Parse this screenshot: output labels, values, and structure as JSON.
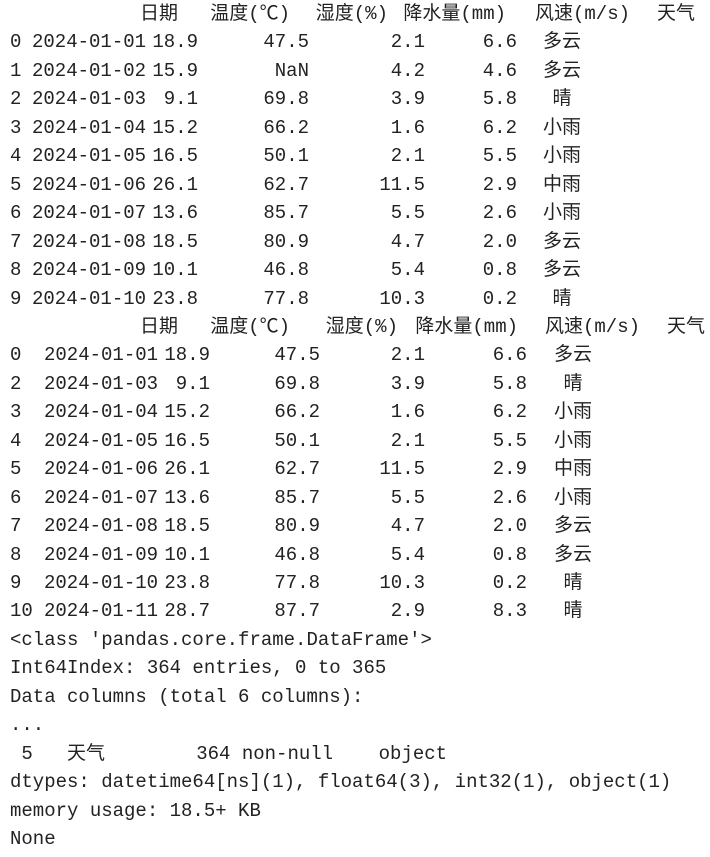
{
  "table1": {
    "header": [
      "日期",
      "温度(℃)",
      "湿度(%)",
      "降水量(mm)",
      "风速(m/s)",
      "天气"
    ],
    "rows": [
      [
        "0",
        "2024-01-01",
        "18.9",
        "47.5",
        "2.1",
        "6.6",
        "多云"
      ],
      [
        "1",
        "2024-01-02",
        "15.9",
        "NaN",
        "4.2",
        "4.6",
        "多云"
      ],
      [
        "2",
        "2024-01-03",
        "9.1",
        "69.8",
        "3.9",
        "5.8",
        "晴"
      ],
      [
        "3",
        "2024-01-04",
        "15.2",
        "66.2",
        "1.6",
        "6.2",
        "小雨"
      ],
      [
        "4",
        "2024-01-05",
        "16.5",
        "50.1",
        "2.1",
        "5.5",
        "小雨"
      ],
      [
        "5",
        "2024-01-06",
        "26.1",
        "62.7",
        "11.5",
        "2.9",
        "中雨"
      ],
      [
        "6",
        "2024-01-07",
        "13.6",
        "85.7",
        "5.5",
        "2.6",
        "小雨"
      ],
      [
        "7",
        "2024-01-08",
        "18.5",
        "80.9",
        "4.7",
        "2.0",
        "多云"
      ],
      [
        "8",
        "2024-01-09",
        "10.1",
        "46.8",
        "5.4",
        "0.8",
        "多云"
      ],
      [
        "9",
        "2024-01-10",
        "23.8",
        "77.8",
        "10.3",
        "0.2",
        "晴"
      ]
    ]
  },
  "table2": {
    "header": [
      "日期",
      "温度(℃)",
      "湿度(%)",
      "降水量(mm)",
      "风速(m/s)",
      "天气"
    ],
    "rows": [
      [
        "0",
        "2024-01-01",
        "18.9",
        "47.5",
        "2.1",
        "6.6",
        "多云"
      ],
      [
        "2",
        "2024-01-03",
        "9.1",
        "69.8",
        "3.9",
        "5.8",
        "晴"
      ],
      [
        "3",
        "2024-01-04",
        "15.2",
        "66.2",
        "1.6",
        "6.2",
        "小雨"
      ],
      [
        "4",
        "2024-01-05",
        "16.5",
        "50.1",
        "2.1",
        "5.5",
        "小雨"
      ],
      [
        "5",
        "2024-01-06",
        "26.1",
        "62.7",
        "11.5",
        "2.9",
        "中雨"
      ],
      [
        "6",
        "2024-01-07",
        "13.6",
        "85.7",
        "5.5",
        "2.6",
        "小雨"
      ],
      [
        "7",
        "2024-01-08",
        "18.5",
        "80.9",
        "4.7",
        "2.0",
        "多云"
      ],
      [
        "8",
        "2024-01-09",
        "10.1",
        "46.8",
        "5.4",
        "0.8",
        "多云"
      ],
      [
        "9",
        "2024-01-10",
        "23.8",
        "77.8",
        "10.3",
        "0.2",
        "晴"
      ],
      [
        "10",
        "2024-01-11",
        "28.7",
        "87.7",
        "2.9",
        "8.3",
        "晴"
      ]
    ]
  },
  "info": [
    "<class 'pandas.core.frame.DataFrame'>",
    "Int64Index: 364 entries, 0 to 365",
    "Data columns (total 6 columns):",
    "...",
    " 5   天气        364 non-null    object",
    "dtypes: datetime64[ns](1), float64(3), int32(1), object(1)",
    "memory usage: 18.5+ KB",
    "None"
  ]
}
